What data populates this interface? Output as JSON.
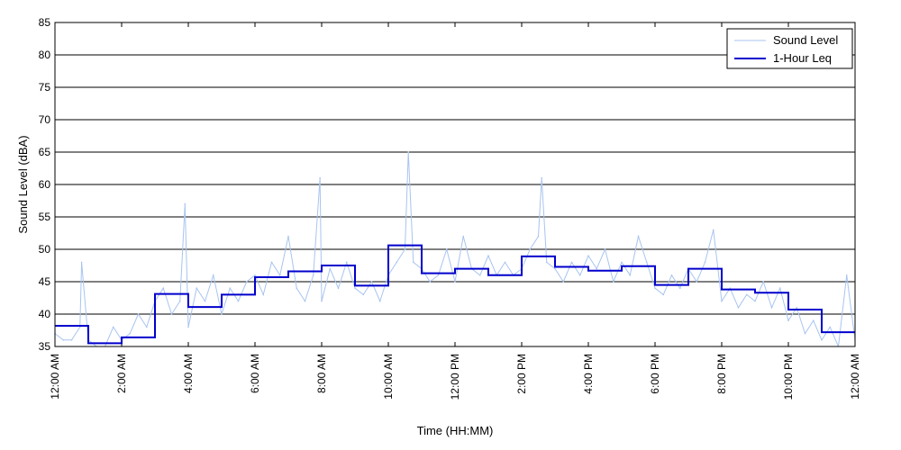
{
  "chart_data": {
    "type": "line",
    "title": "",
    "xlabel": "Time (HH:MM)",
    "ylabel": "Sound Level (dBA)",
    "ylim": [
      35,
      85
    ],
    "xlim": [
      0,
      24
    ],
    "y_ticks": [
      35,
      40,
      45,
      50,
      55,
      60,
      65,
      70,
      75,
      80,
      85
    ],
    "x_ticks": [
      {
        "hour": 0,
        "label": "12:00 AM"
      },
      {
        "hour": 2,
        "label": "2:00 AM"
      },
      {
        "hour": 4,
        "label": "4:00 AM"
      },
      {
        "hour": 6,
        "label": "6:00 AM"
      },
      {
        "hour": 8,
        "label": "8:00 AM"
      },
      {
        "hour": 10,
        "label": "10:00 AM"
      },
      {
        "hour": 12,
        "label": "12:00 PM"
      },
      {
        "hour": 14,
        "label": "2:00 PM"
      },
      {
        "hour": 16,
        "label": "4:00 PM"
      },
      {
        "hour": 18,
        "label": "6:00 PM"
      },
      {
        "hour": 20,
        "label": "8:00 PM"
      },
      {
        "hour": 22,
        "label": "10:00 PM"
      },
      {
        "hour": 24,
        "label": "12:00 AM"
      }
    ],
    "grid": "horizontal",
    "legend_position": "top-right",
    "series": [
      {
        "name": "Sound Level",
        "color": "#a8c4f0",
        "style": "thin-line",
        "x": [
          0.0,
          0.25,
          0.5,
          0.75,
          0.8,
          1.0,
          1.25,
          1.5,
          1.75,
          2.0,
          2.25,
          2.5,
          2.75,
          3.0,
          3.25,
          3.5,
          3.75,
          3.9,
          4.0,
          4.25,
          4.5,
          4.75,
          5.0,
          5.25,
          5.5,
          5.75,
          6.0,
          6.25,
          6.5,
          6.75,
          7.0,
          7.25,
          7.5,
          7.75,
          7.95,
          8.0,
          8.25,
          8.5,
          8.75,
          9.0,
          9.25,
          9.5,
          9.75,
          10.0,
          10.25,
          10.5,
          10.6,
          10.75,
          11.0,
          11.25,
          11.5,
          11.75,
          12.0,
          12.25,
          12.5,
          12.75,
          13.0,
          13.25,
          13.5,
          13.75,
          14.0,
          14.25,
          14.5,
          14.6,
          14.75,
          15.0,
          15.25,
          15.5,
          15.75,
          16.0,
          16.25,
          16.5,
          16.75,
          17.0,
          17.25,
          17.5,
          17.75,
          18.0,
          18.25,
          18.5,
          18.75,
          19.0,
          19.25,
          19.5,
          19.75,
          20.0,
          20.25,
          20.5,
          20.75,
          21.0,
          21.25,
          21.5,
          21.75,
          22.0,
          22.25,
          22.5,
          22.75,
          23.0,
          23.25,
          23.5,
          23.75,
          24.0
        ],
        "values": [
          37,
          36,
          36,
          38,
          48,
          36,
          35,
          35,
          38,
          36,
          37,
          40,
          38,
          42,
          44,
          40,
          42,
          57,
          38,
          44,
          42,
          46,
          40,
          44,
          42,
          45,
          46,
          43,
          48,
          46,
          52,
          44,
          42,
          46,
          61,
          42,
          47,
          44,
          48,
          44,
          43,
          45,
          42,
          46,
          48,
          50,
          65,
          48,
          47,
          45,
          46,
          50,
          45,
          52,
          47,
          46,
          49,
          46,
          48,
          46,
          47,
          50,
          52,
          61,
          48,
          47,
          45,
          48,
          46,
          49,
          47,
          50,
          45,
          48,
          46,
          52,
          48,
          44,
          43,
          46,
          44,
          47,
          45,
          48,
          53,
          42,
          44,
          41,
          43,
          42,
          45,
          41,
          44,
          39,
          41,
          37,
          39,
          36,
          38,
          35,
          46,
          36
        ]
      },
      {
        "name": "1-Hour Leq",
        "color": "#0000cc",
        "style": "step",
        "x": [
          0,
          1,
          2,
          3,
          4,
          5,
          6,
          7,
          8,
          9,
          10,
          11,
          12,
          13,
          14,
          15,
          16,
          17,
          18,
          19,
          20,
          21,
          22,
          23
        ],
        "values": [
          38.2,
          35.5,
          36.4,
          43.1,
          41.1,
          43.0,
          45.7,
          46.6,
          47.5,
          44.4,
          50.6,
          46.3,
          47.0,
          46.0,
          48.9,
          47.3,
          46.7,
          47.4,
          44.5,
          47.0,
          43.8,
          43.3,
          40.7,
          37.2
        ]
      }
    ]
  }
}
